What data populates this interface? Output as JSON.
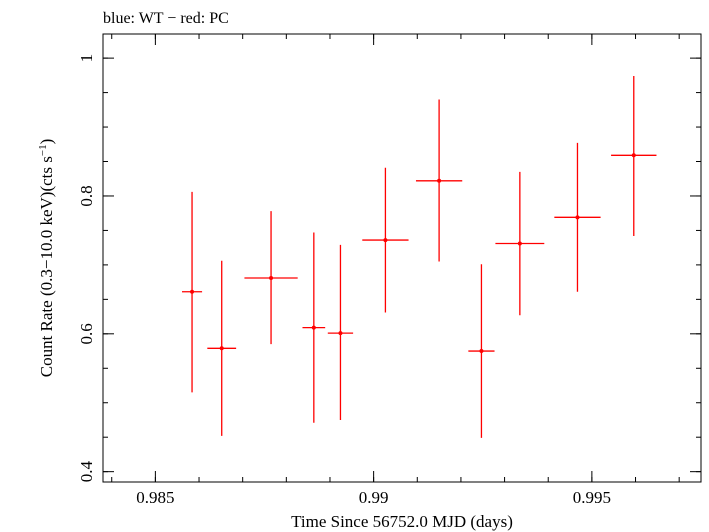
{
  "header": {
    "caption": "blue: WT − red: PC"
  },
  "chart_data": {
    "type": "scatter",
    "title": "",
    "xlabel": "Time Since 56752.0 MJD (days)",
    "ylabel_main": "Count Rate (0.3−10.0 keV)(cts s",
    "ylabel_sup": "−1",
    "ylabel_close": ")",
    "xlim": [
      0.9838,
      0.9975
    ],
    "ylim": [
      0.385,
      1.035
    ],
    "xticks": [
      {
        "value": 0.985,
        "label": "0.985"
      },
      {
        "value": 0.99,
        "label": "0.99"
      },
      {
        "value": 0.995,
        "label": "0.995"
      }
    ],
    "yticks": [
      {
        "value": 0.4,
        "label": "0.4"
      },
      {
        "value": 0.6,
        "label": "0.6"
      },
      {
        "value": 0.8,
        "label": "0.8"
      },
      {
        "value": 1.0,
        "label": "1"
      }
    ],
    "xminor_step": 0.001,
    "yminor_step": 0.05,
    "series": [
      {
        "color": "#ff0000",
        "points": [
          {
            "x": 0.98584,
            "xerr": 0.00023,
            "y": 0.661,
            "ylo": 0.515,
            "yhi": 0.806
          },
          {
            "x": 0.98652,
            "xerr": 0.00033,
            "y": 0.579,
            "ylo": 0.452,
            "yhi": 0.706
          },
          {
            "x": 0.98765,
            "xerr": 0.00061,
            "y": 0.681,
            "ylo": 0.585,
            "yhi": 0.778
          },
          {
            "x": 0.98863,
            "xerr": 0.00026,
            "y": 0.609,
            "ylo": 0.471,
            "yhi": 0.747
          },
          {
            "x": 0.98924,
            "xerr": 0.00029,
            "y": 0.601,
            "ylo": 0.475,
            "yhi": 0.729
          },
          {
            "x": 0.99027,
            "xerr": 0.00053,
            "y": 0.736,
            "ylo": 0.631,
            "yhi": 0.841
          },
          {
            "x": 0.9915,
            "xerr": 0.00053,
            "y": 0.822,
            "ylo": 0.705,
            "yhi": 0.94
          },
          {
            "x": 0.99247,
            "xerr": 0.0003,
            "y": 0.575,
            "ylo": 0.449,
            "yhi": 0.701
          },
          {
            "x": 0.99335,
            "xerr": 0.00056,
            "y": 0.731,
            "ylo": 0.627,
            "yhi": 0.835
          },
          {
            "x": 0.99467,
            "xerr": 0.00053,
            "y": 0.769,
            "ylo": 0.661,
            "yhi": 0.877
          },
          {
            "x": 0.99596,
            "xerr": 0.00052,
            "y": 0.859,
            "ylo": 0.742,
            "yhi": 0.974
          }
        ]
      }
    ]
  }
}
